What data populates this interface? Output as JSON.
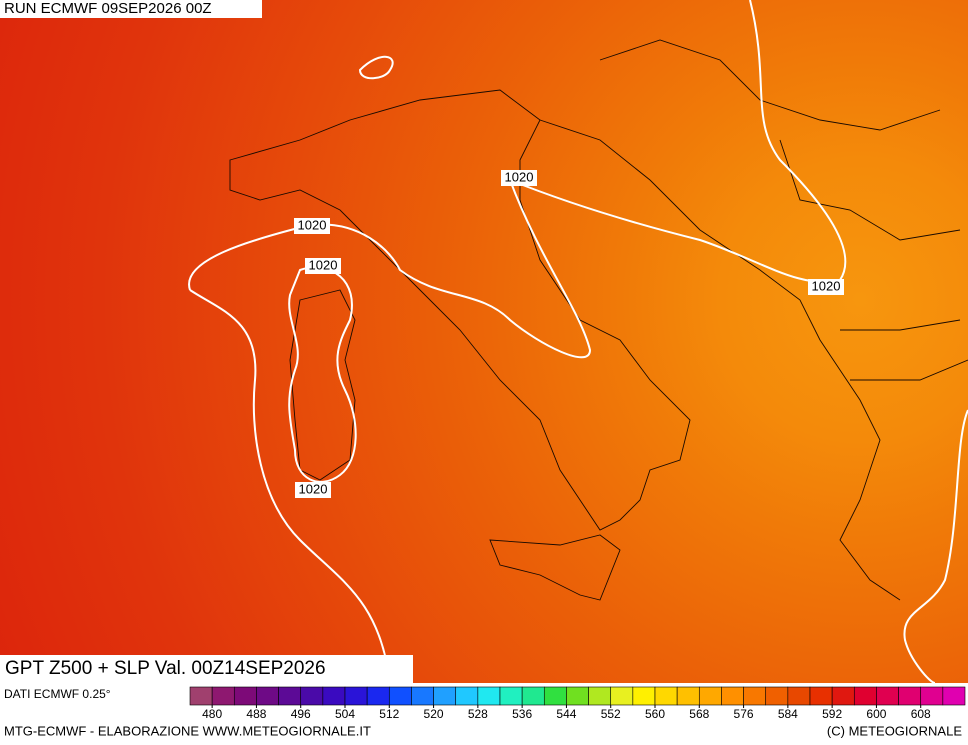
{
  "run_label": "RUN ECMWF 09SEP2026 00Z",
  "title": "GPT Z500 + SLP Val. 00Z14SEP2026",
  "source_note": "DATI ECMWF 0.25°",
  "footer_left": "MTG-ECMWF - ELABORAZIONE WWW.METEOGIORNALE.IT",
  "footer_right": "(C) METEOGIORNALE",
  "contour_labels": [
    "1020",
    "1020",
    "1020",
    "1020",
    "1020"
  ],
  "colorbar": {
    "range": [
      476,
      616
    ],
    "ticks": [
      480,
      488,
      496,
      504,
      512,
      520,
      528,
      536,
      544,
      552,
      560,
      568,
      576,
      584,
      592,
      600,
      608
    ],
    "colors": [
      "#a0406e",
      "#8e1870",
      "#7d0a78",
      "#6e0a86",
      "#5c0a96",
      "#4a0aa8",
      "#3a0ac0",
      "#2a14d8",
      "#1a28f0",
      "#1050ff",
      "#1878ff",
      "#20a0ff",
      "#20c8ff",
      "#20e8f0",
      "#20f0c0",
      "#20e890",
      "#30e040",
      "#70e020",
      "#b0e820",
      "#e8f020",
      "#fff000",
      "#ffd800",
      "#ffc000",
      "#ffa800",
      "#ff9000",
      "#f87800",
      "#f06000",
      "#e84800",
      "#e83000",
      "#e01810",
      "#e00030",
      "#e00050",
      "#e00070",
      "#e00090",
      "#e000b0"
    ]
  }
}
